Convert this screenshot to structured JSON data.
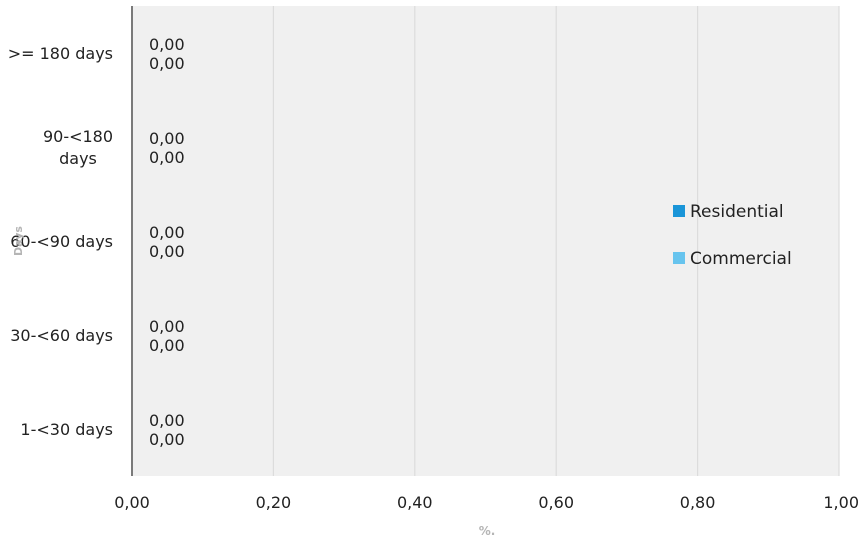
{
  "chart_data": {
    "type": "bar",
    "orientation": "horizontal",
    "categories": [
      ">= 180 days",
      "90-<180 days",
      "60-<90 days",
      "30-<60 days",
      "1-<30 days"
    ],
    "category_lines": [
      [
        ">= 180 days"
      ],
      [
        "90-<180",
        "days"
      ],
      [
        "60-<90 days"
      ],
      [
        "30-<60 days"
      ],
      [
        "1-<30 days"
      ]
    ],
    "series": [
      {
        "name": "Residential",
        "values": [
          0,
          0,
          0,
          0,
          0
        ],
        "value_labels": [
          "0,00",
          "0,00",
          "0,00",
          "0,00",
          "0,00"
        ],
        "color": "#1a95d8"
      },
      {
        "name": "Commercial",
        "values": [
          0,
          0,
          0,
          0,
          0
        ],
        "value_labels": [
          "0,00",
          "0,00",
          "0,00",
          "0,00",
          "0,00"
        ],
        "color": "#67c4ee"
      }
    ],
    "xlabel": "%.",
    "ylabel": "Days",
    "xlim": [
      0,
      1
    ],
    "xticks": [
      0,
      0.2,
      0.4,
      0.6,
      0.8,
      1
    ],
    "xtick_labels": [
      "0,00",
      "0,20",
      "0,40",
      "0,60",
      "0,80",
      "1,00"
    ],
    "grid": "vertical",
    "legend": "right",
    "plot_background": "#f0f0f0",
    "gridline_color": "#dcdcdc"
  }
}
